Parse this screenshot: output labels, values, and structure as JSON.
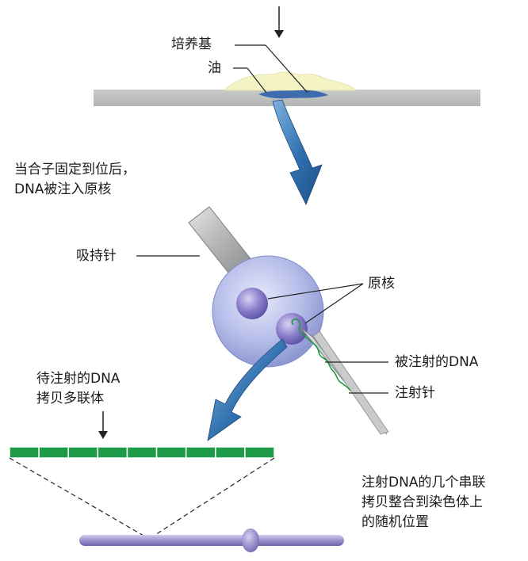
{
  "labels": {
    "medium": "培养基",
    "oil": "油",
    "step_line1": "当合子固定到位后，",
    "step_line2": "DNA被注入原核",
    "holding_pipette": "吸持针",
    "pronuclei": "原核",
    "injected_dna": "被注射的DNA",
    "injection_needle": "注射针",
    "concatemer_line1": "待注射的DNA",
    "concatemer_line2": "拷贝多联体",
    "integration_line1": "注射DNA的几个串联",
    "integration_line2": "拷贝整合到染色体上",
    "integration_line3": "的随机位置"
  },
  "colors": {
    "slide": "#bfc1c1",
    "medium": "#f4f3c4",
    "oil": "#3f6cae",
    "arrow": "#2f6fae",
    "cell": "#a8afde",
    "pronucleus": "#6a5fb4",
    "pipette": "#a9aaab",
    "dna_segment": "#1e9b48",
    "chromosome": "#9d90cf"
  },
  "concatemer_segments": 9
}
